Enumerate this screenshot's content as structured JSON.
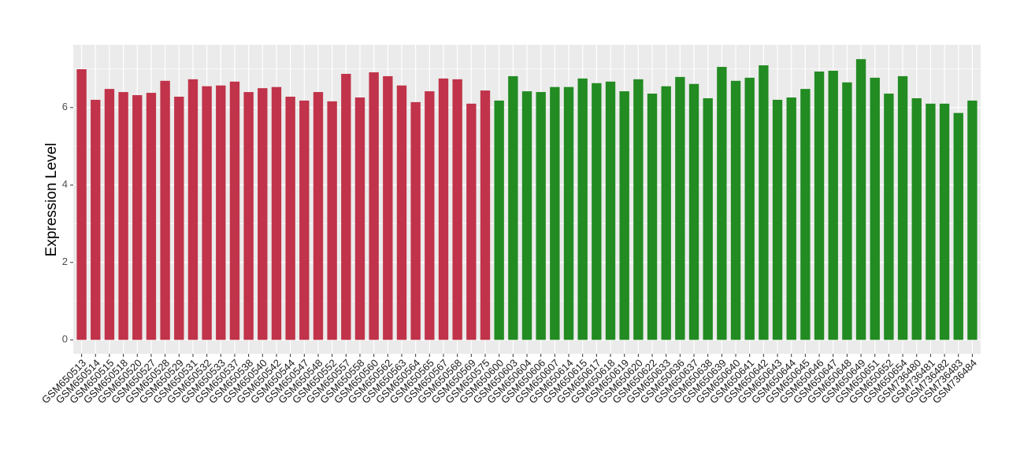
{
  "chart_data": {
    "type": "bar",
    "y_label": "Expression Level",
    "categories": [
      "GSM650513",
      "GSM650514",
      "GSM650515",
      "GSM650518",
      "GSM650520",
      "GSM650527",
      "GSM650528",
      "GSM650529",
      "GSM650531",
      "GSM650532",
      "GSM650533",
      "GSM650537",
      "GSM650538",
      "GSM650540",
      "GSM650542",
      "GSM650544",
      "GSM650547",
      "GSM650548",
      "GSM650552",
      "GSM650557",
      "GSM650558",
      "GSM650560",
      "GSM650562",
      "GSM650563",
      "GSM650564",
      "GSM650565",
      "GSM650567",
      "GSM650568",
      "GSM650569",
      "GSM650575",
      "GSM650600",
      "GSM650603",
      "GSM650604",
      "GSM650606",
      "GSM650607",
      "GSM650614",
      "GSM650615",
      "GSM650617",
      "GSM650618",
      "GSM650619",
      "GSM650620",
      "GSM650622",
      "GSM650633",
      "GSM650636",
      "GSM650637",
      "GSM650638",
      "GSM650639",
      "GSM650640",
      "GSM650641",
      "GSM650642",
      "GSM650643",
      "GSM650644",
      "GSM650645",
      "GSM650646",
      "GSM650647",
      "GSM650648",
      "GSM650649",
      "GSM650651",
      "GSM650652",
      "GSM650654",
      "GSM736480",
      "GSM736481",
      "GSM736482",
      "GSM736483",
      "GSM736484"
    ],
    "values": [
      6.99,
      6.2,
      6.48,
      6.4,
      6.32,
      6.38,
      6.69,
      6.28,
      6.73,
      6.55,
      6.57,
      6.67,
      6.4,
      6.5,
      6.53,
      6.28,
      6.18,
      6.4,
      6.16,
      6.87,
      6.26,
      6.91,
      6.81,
      6.57,
      6.14,
      6.42,
      6.75,
      6.73,
      6.1,
      6.44,
      6.18,
      6.81,
      6.42,
      6.4,
      6.53,
      6.53,
      6.75,
      6.63,
      6.67,
      6.42,
      6.73,
      6.36,
      6.55,
      6.79,
      6.61,
      6.24,
      7.05,
      6.69,
      6.77,
      7.09,
      6.2,
      6.26,
      6.48,
      6.93,
      6.95,
      6.65,
      7.25,
      6.77,
      6.36,
      6.81,
      6.24,
      6.1,
      6.1,
      5.86,
      6.18
    ],
    "colors": [
      "#c0334a",
      "#c0334a",
      "#c0334a",
      "#c0334a",
      "#c0334a",
      "#c0334a",
      "#c0334a",
      "#c0334a",
      "#c0334a",
      "#c0334a",
      "#c0334a",
      "#c0334a",
      "#c0334a",
      "#c0334a",
      "#c0334a",
      "#c0334a",
      "#c0334a",
      "#c0334a",
      "#c0334a",
      "#c0334a",
      "#c0334a",
      "#c0334a",
      "#c0334a",
      "#c0334a",
      "#c0334a",
      "#c0334a",
      "#c0334a",
      "#c0334a",
      "#c0334a",
      "#c0334a",
      "#228b22",
      "#228b22",
      "#228b22",
      "#228b22",
      "#228b22",
      "#228b22",
      "#228b22",
      "#228b22",
      "#228b22",
      "#228b22",
      "#228b22",
      "#228b22",
      "#228b22",
      "#228b22",
      "#228b22",
      "#228b22",
      "#228b22",
      "#228b22",
      "#228b22",
      "#228b22",
      "#228b22",
      "#228b22",
      "#228b22",
      "#228b22",
      "#228b22",
      "#228b22",
      "#228b22",
      "#228b22",
      "#228b22",
      "#228b22",
      "#228b22",
      "#228b22",
      "#228b22",
      "#228b22",
      "#228b22"
    ],
    "ylim": [
      -0.36,
      7.62
    ],
    "yticks": [
      0,
      2,
      4,
      6
    ],
    "minor_yticks": [
      1,
      3,
      5,
      7
    ],
    "grid": true
  }
}
